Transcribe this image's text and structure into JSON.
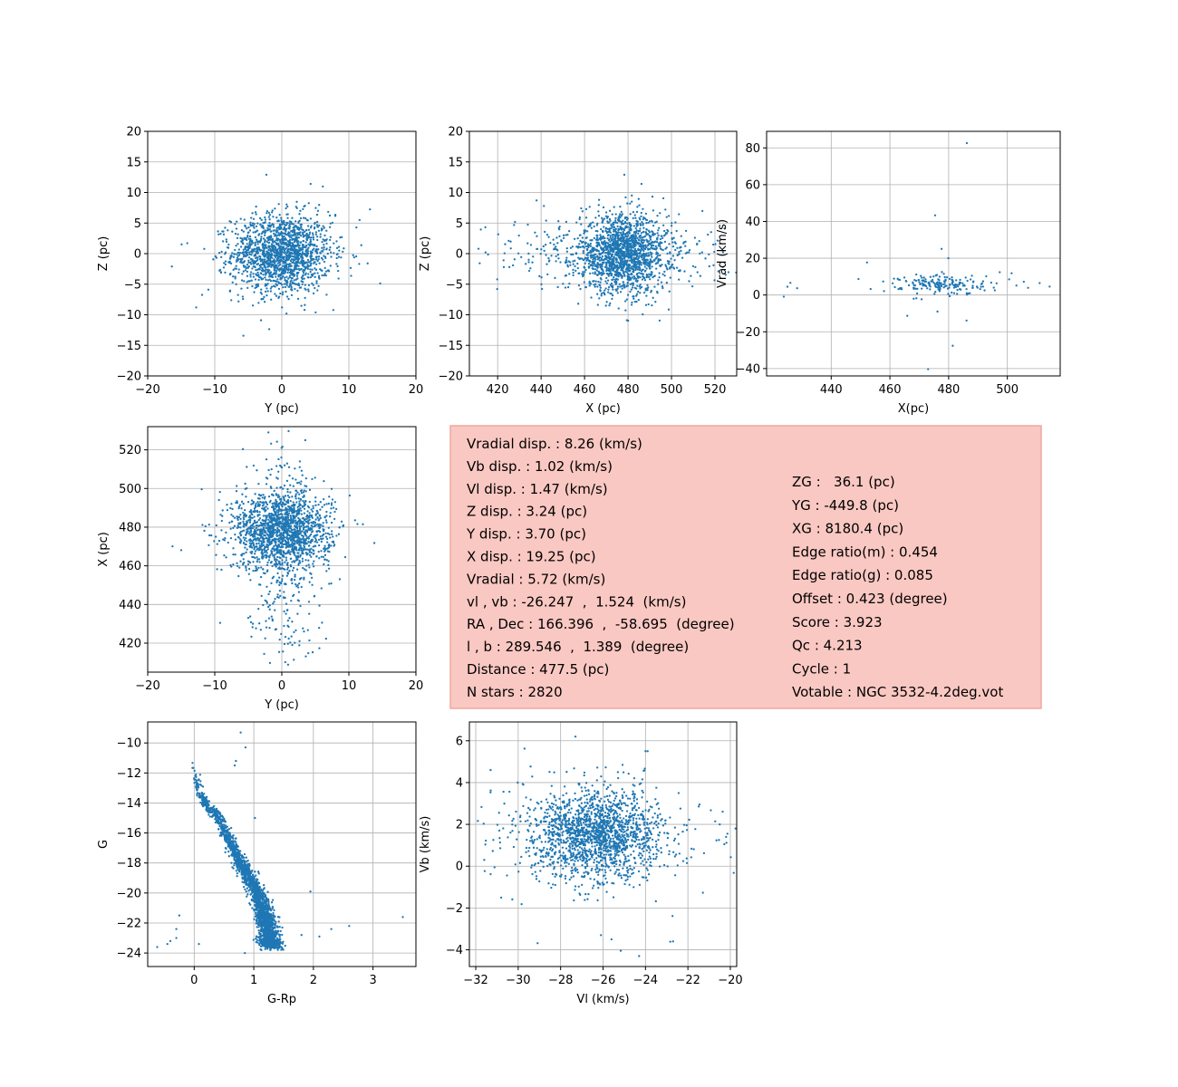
{
  "colors": {
    "points": "#1f77b4",
    "grid": "#b0b0b0",
    "info_bg": "#fac8c2",
    "info_border": "#f0a8a0"
  },
  "chart_data": [
    {
      "id": "yz",
      "type": "scatter",
      "xlabel": "Y (pc)",
      "ylabel": "Z (pc)",
      "xlim": [
        -20,
        20
      ],
      "ylim": [
        -20,
        20
      ],
      "grid": true,
      "xticks": [
        -20,
        -10,
        0,
        10,
        20
      ],
      "yticks": [
        -20,
        -15,
        -10,
        -5,
        0,
        5,
        10,
        15,
        20
      ],
      "clusters": [
        {
          "n": 1600,
          "cx": 0,
          "cy": 0,
          "sx": 3.7,
          "sy": 3.2
        },
        {
          "n": 20,
          "cx": 0,
          "cy": 0,
          "sx": 8,
          "sy": 4
        }
      ],
      "points": [
        [
          -2.3,
          12.9
        ],
        [
          4.3,
          11.4
        ],
        [
          -16.4,
          -2.1
        ],
        [
          12.8,
          -1.6
        ],
        [
          11.6,
          5.5
        ],
        [
          -14.1,
          1.7
        ],
        [
          -3.1,
          -10.9
        ],
        [
          0.7,
          -9.8
        ]
      ]
    },
    {
      "id": "xz",
      "type": "scatter",
      "xlabel": "X (pc)",
      "ylabel": "Z (pc)",
      "xlim": [
        407,
        530
      ],
      "ylim": [
        -20,
        20
      ],
      "grid": true,
      "xticks": [
        420,
        440,
        460,
        480,
        500,
        520
      ],
      "yticks": [
        -20,
        -15,
        -10,
        -5,
        0,
        5,
        10,
        15,
        20
      ],
      "clusters": [
        {
          "n": 1500,
          "cx": 478,
          "cy": 0,
          "sx": 10,
          "sy": 3.2
        },
        {
          "n": 350,
          "cx": 468,
          "cy": 0,
          "sx": 30,
          "sy": 2.6
        }
      ],
      "points": [
        [
          478.3,
          12.9
        ],
        [
          486.2,
          11.4
        ],
        [
          479.5,
          -10.9
        ],
        [
          411.2,
          0.8
        ],
        [
          524.4,
          4.1
        ],
        [
          437.9,
          8.7
        ],
        [
          419.8,
          -5.8
        ],
        [
          523.6,
          -2.2
        ]
      ]
    },
    {
      "id": "xvrad",
      "type": "scatter",
      "xlabel": "X(pc)",
      "ylabel": "Vrad (km/s)",
      "xlim": [
        418,
        518
      ],
      "ylim": [
        -44,
        89
      ],
      "grid": true,
      "xticks": [
        440,
        460,
        480,
        500
      ],
      "yticks": [
        -40,
        -20,
        0,
        20,
        40,
        60,
        80
      ],
      "clusters": [
        {
          "n": 170,
          "cx": 478,
          "cy": 5.7,
          "sx": 7,
          "sy": 2.8
        },
        {
          "n": 20,
          "cx": 478,
          "cy": 5,
          "sx": 15,
          "sy": 4
        }
      ],
      "points": [
        [
          486.2,
          82.6
        ],
        [
          475.4,
          43.3
        ],
        [
          477.6,
          25.1
        ],
        [
          479.9,
          20.0
        ],
        [
          473.0,
          -40.3
        ],
        [
          481.4,
          -27.6
        ],
        [
          425.1,
          4.5
        ],
        [
          426.1,
          6.6
        ],
        [
          428.4,
          3.7
        ],
        [
          452.2,
          17.7
        ],
        [
          458.0,
          2.1
        ],
        [
          465.9,
          -11.3
        ],
        [
          486.1,
          -13.9
        ],
        [
          476.2,
          -9.0
        ],
        [
          514.4,
          4.6
        ],
        [
          511.0,
          6.5
        ],
        [
          497.4,
          12.4
        ],
        [
          505.6,
          7.2
        ]
      ]
    },
    {
      "id": "yx",
      "type": "scatter",
      "xlabel": "Y (pc)",
      "ylabel": "X (pc)",
      "xlim": [
        -20,
        20
      ],
      "ylim": [
        405,
        532
      ],
      "grid": true,
      "xticks": [
        -20,
        -10,
        0,
        10,
        20
      ],
      "yticks": [
        420,
        440,
        460,
        480,
        500,
        520
      ],
      "clusters": [
        {
          "n": 1500,
          "cx": 0,
          "cy": 478,
          "sx": 3.7,
          "sy": 10
        },
        {
          "n": 350,
          "cx": 0,
          "cy": 468,
          "sx": 2.6,
          "sy": 30
        }
      ],
      "points": [
        [
          -16.3,
          470.1
        ],
        [
          13.8,
          471.8
        ],
        [
          -9.2,
          430.5
        ],
        [
          6.6,
          422.3
        ],
        [
          -1.6,
          523.2
        ],
        [
          3.5,
          525.0
        ],
        [
          -5.8,
          520.4
        ],
        [
          -15.0,
          468.1
        ]
      ]
    },
    {
      "id": "cmd",
      "type": "scatter",
      "xlabel": "G-Rp",
      "ylabel": "G",
      "xlim": [
        -0.78,
        3.72
      ],
      "ylim": [
        -24.9,
        -8.6
      ],
      "grid": true,
      "xticks": [
        0,
        1,
        2,
        3
      ],
      "yticks": [
        -24,
        -22,
        -20,
        -18,
        -16,
        -14,
        -12,
        -10
      ],
      "sequence": [
        [
          0.0,
          -11.4
        ],
        [
          0.08,
          -13.2
        ],
        [
          0.22,
          -14.2
        ],
        [
          0.42,
          -15.0
        ],
        [
          0.58,
          -16.3
        ],
        [
          0.72,
          -17.6
        ],
        [
          0.88,
          -18.7
        ],
        [
          1.05,
          -19.9
        ],
        [
          1.15,
          -21.0
        ],
        [
          1.22,
          -22.0
        ],
        [
          1.27,
          -23.1
        ],
        [
          1.3,
          -23.6
        ]
      ],
      "sequence_n": 2200,
      "points": [
        [
          0.78,
          -9.3
        ],
        [
          0.86,
          -10.3
        ],
        [
          0.7,
          -11.2
        ],
        [
          0.68,
          -11.5
        ],
        [
          1.02,
          -15.0
        ],
        [
          -0.62,
          -23.6
        ],
        [
          -0.3,
          -22.4
        ],
        [
          -0.4,
          -23.2
        ],
        [
          -0.3,
          -23.0
        ],
        [
          0.08,
          -23.4
        ],
        [
          -0.45,
          -23.4
        ],
        [
          -0.25,
          -21.5
        ],
        [
          1.95,
          -19.9
        ],
        [
          2.6,
          -22.2
        ],
        [
          3.5,
          -21.6
        ],
        [
          2.1,
          -22.9
        ],
        [
          2.3,
          -22.4
        ],
        [
          1.8,
          -22.8
        ],
        [
          0.85,
          -24.0
        ]
      ]
    },
    {
      "id": "vlvb",
      "type": "scatter",
      "xlabel": "Vl (km/s)",
      "ylabel": "Vb (km/s)",
      "xlim": [
        -32.3,
        -19.7
      ],
      "ylim": [
        -4.8,
        6.9
      ],
      "grid": true,
      "xticks": [
        -32,
        -30,
        -28,
        -26,
        -24,
        -22,
        -20
      ],
      "yticks": [
        -4,
        -2,
        0,
        2,
        4,
        6
      ],
      "clusters": [
        {
          "n": 1500,
          "cx": -26.25,
          "cy": 1.52,
          "sx": 1.47,
          "sy": 1.02
        },
        {
          "n": 350,
          "cx": -26.25,
          "cy": 1.52,
          "sx": 2.6,
          "sy": 1.4
        }
      ],
      "points": [
        [
          -27.3,
          6.2
        ],
        [
          -24.0,
          5.5
        ],
        [
          -25.3,
          4.5
        ],
        [
          -31.3,
          4.6
        ],
        [
          -30.8,
          -1.5
        ],
        [
          -24.3,
          -4.3
        ],
        [
          -25.6,
          -3.5
        ],
        [
          -20.2,
          1.4
        ],
        [
          -20.5,
          2.0
        ],
        [
          -22.7,
          -3.6
        ],
        [
          -26.1,
          -3.3
        ],
        [
          -31.6,
          0.3
        ]
      ]
    }
  ],
  "info_box": {
    "left": [
      "Vradial disp. : 8.26 (km/s)",
      "Vb disp. : 1.02 (km/s)",
      "Vl disp. : 1.47 (km/s)",
      "Z disp. : 3.24 (pc)",
      "Y disp. : 3.70 (pc)",
      "X disp. : 19.25 (pc)",
      "Vradial : 5.72 (km/s)",
      "vl , vb : -26.247  ,  1.524  (km/s)",
      "RA , Dec : 166.396  ,  -58.695  (degree)",
      "l , b : 289.546  ,  1.389  (degree)",
      "Distance : 477.5 (pc)",
      "N stars : 2820"
    ],
    "right": [
      "ZG :   36.1 (pc)",
      "YG : -449.8 (pc)",
      "XG : 8180.4 (pc)",
      "Edge ratio(m) : 0.454",
      "Edge ratio(g) : 0.085",
      "Offset : 0.423 (degree)",
      "Score : 3.923",
      "Qc : 4.213",
      "Cycle : 1",
      "Votable : NGC 3532-4.2deg.vot"
    ]
  }
}
